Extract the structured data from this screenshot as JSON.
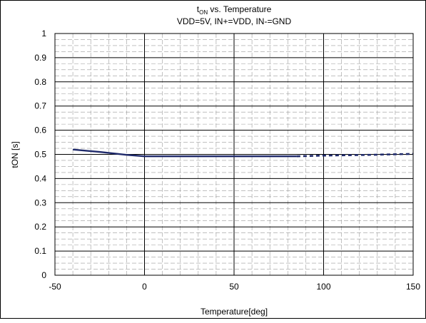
{
  "chart_data": {
    "type": "line",
    "title_main": "t",
    "title_sub": "ON",
    "title_rest": " vs. Temperature",
    "subtitle": "VDD=5V, IN+=VDD, IN-=GND",
    "xlabel": "Temperature[deg]",
    "ylabel": "tON [s]",
    "xlim": [
      -50,
      150
    ],
    "ylim": [
      0,
      1
    ],
    "xticks": [
      -50,
      0,
      50,
      100,
      150
    ],
    "yticks": [
      0,
      0.1,
      0.2,
      0.3,
      0.4,
      0.5,
      0.6,
      0.7,
      0.8,
      0.9,
      1
    ],
    "grid": true,
    "series": [
      {
        "style": "solid",
        "color": "#1f2a6b",
        "x": [
          -40,
          -25,
          -10,
          0,
          25,
          50,
          85
        ],
        "y": [
          0.52,
          0.51,
          0.498,
          0.492,
          0.492,
          0.492,
          0.492
        ]
      },
      {
        "style": "dashed",
        "color": "#1f2a6b",
        "x": [
          85,
          100,
          125,
          150
        ],
        "y": [
          0.492,
          0.495,
          0.498,
          0.502
        ]
      }
    ]
  }
}
